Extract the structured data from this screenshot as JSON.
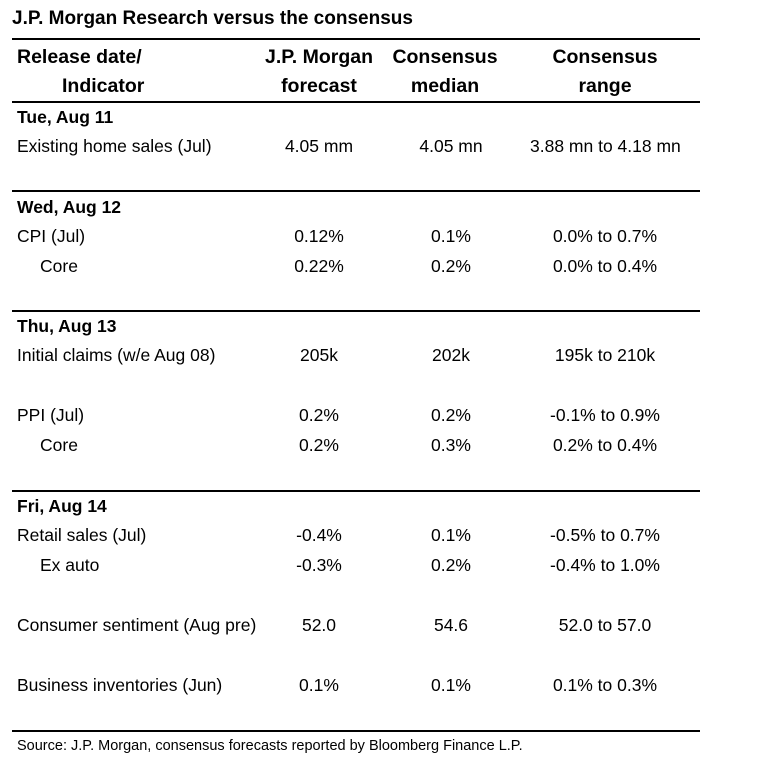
{
  "title": "J.P. Morgan Research versus the consensus",
  "header": {
    "col1_line1": "Release date/",
    "col1_line2": "Indicator",
    "col2_line1": "J.P. Morgan",
    "col2_line2": "forecast",
    "col3_line1": "Consensus",
    "col3_line2": "median",
    "col4_line1": "Consensus",
    "col4_line2": "range"
  },
  "sections": [
    {
      "date": "Tue, Aug 11",
      "rows": [
        {
          "indicator": "Existing home sales (Jul)",
          "jpm": "4.05 mm",
          "median": "4.05 mn",
          "range": "3.88 mn to 4.18 mn"
        }
      ]
    },
    {
      "date": "Wed, Aug 12",
      "rows": [
        {
          "indicator": "CPI (Jul)",
          "jpm": "0.12%",
          "median": "0.1%",
          "range": "0.0% to 0.7%"
        },
        {
          "indicator": "Core",
          "jpm": "0.22%",
          "median": "0.2%",
          "range": "0.0% to 0.4%"
        }
      ]
    },
    {
      "date": "Thu, Aug 13",
      "rows": [
        {
          "indicator": "Initial claims (w/e Aug 08)",
          "jpm": "205k",
          "median": "202k",
          "range": "195k to 210k"
        },
        {
          "indicator": "PPI (Jul)",
          "jpm": "0.2%",
          "median": "0.2%",
          "range": "-0.1% to 0.9%"
        },
        {
          "indicator": "Core",
          "jpm": "0.2%",
          "median": "0.3%",
          "range": "0.2% to 0.4%"
        }
      ]
    },
    {
      "date": "Fri, Aug 14",
      "rows": [
        {
          "indicator": "Retail sales (Jul)",
          "jpm": "-0.4%",
          "median": "0.1%",
          "range": "-0.5% to 0.7%"
        },
        {
          "indicator": "Ex auto",
          "jpm": "-0.3%",
          "median": "0.2%",
          "range": "-0.4% to 1.0%"
        },
        {
          "indicator": "Consumer sentiment (Aug pre)",
          "jpm": "52.0",
          "median": "54.6",
          "range": "52.0 to 57.0"
        },
        {
          "indicator": "Business inventories (Jun)",
          "jpm": "0.1%",
          "median": "0.1%",
          "range": "0.1% to 0.3%"
        }
      ]
    }
  ],
  "source": "Source: J.P. Morgan, consensus forecasts reported by Bloomberg Finance L.P."
}
